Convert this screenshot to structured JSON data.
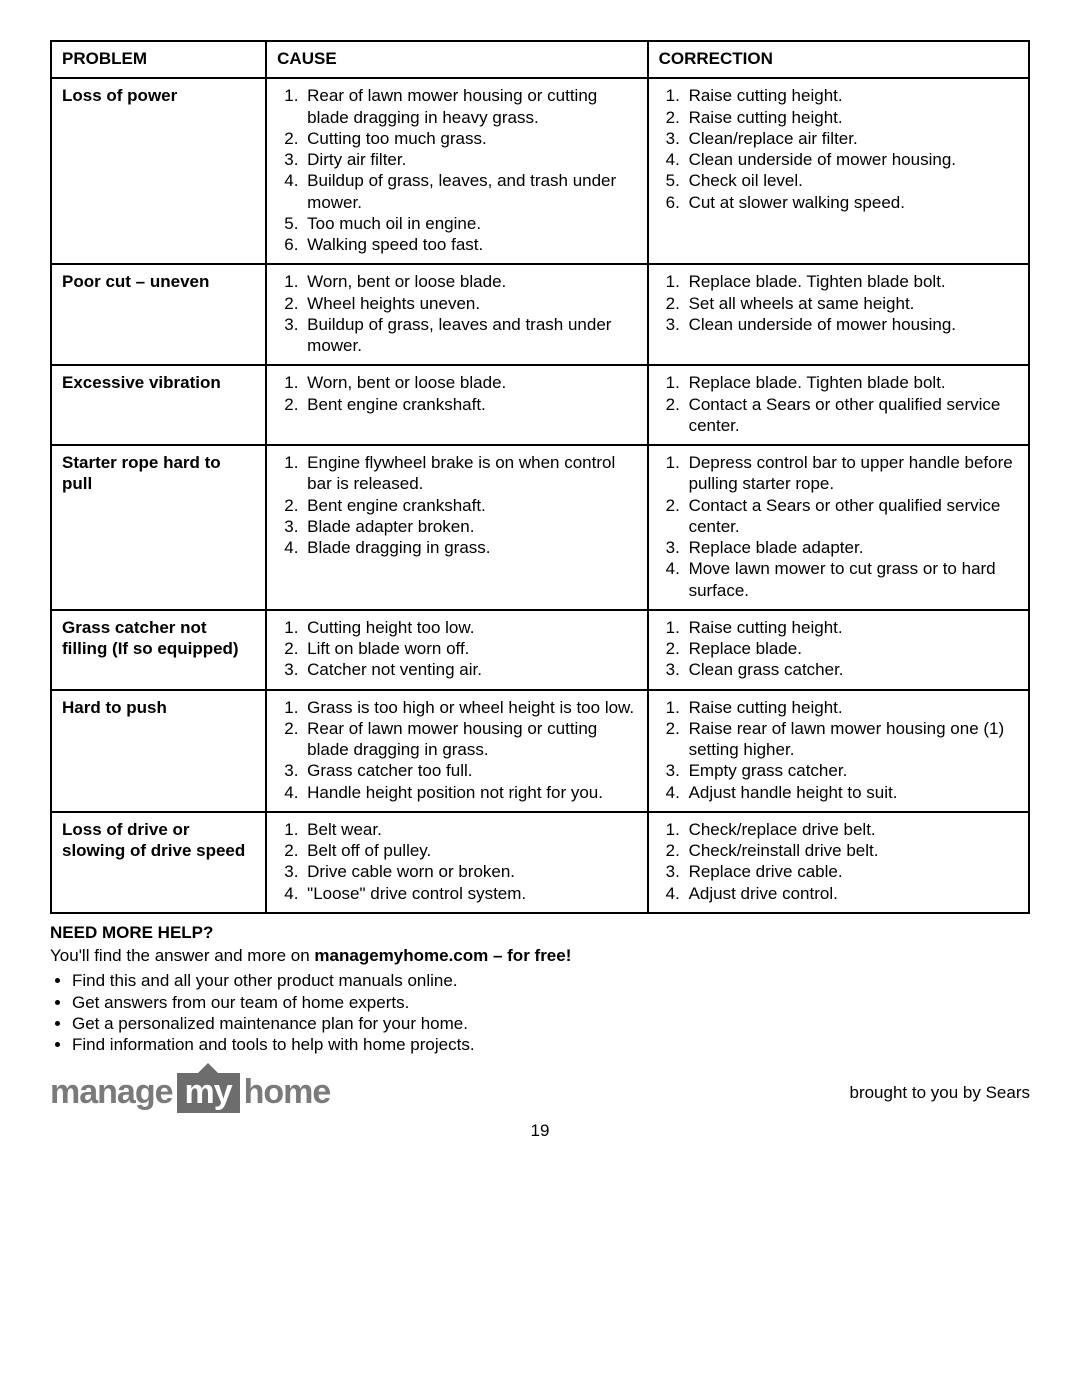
{
  "table": {
    "headers": {
      "problem": "PROBLEM",
      "cause": "CAUSE",
      "correction": "CORRECTION"
    },
    "rows": [
      {
        "problem": "Loss of power",
        "causes": [
          "Rear of lawn mower housing or cutting blade dragging in heavy grass.",
          "Cutting too much grass.",
          "Dirty air filter.",
          "Buildup of grass, leaves, and trash under mower.",
          "Too much oil in engine.",
          "Walking speed too fast."
        ],
        "corrections": [
          "Raise cutting height.",
          "Raise cutting height.",
          "Clean/replace air filter.",
          "Clean underside of mower housing.",
          "Check oil level.",
          "Cut at slower walking speed."
        ]
      },
      {
        "problem": "Poor cut – uneven",
        "causes": [
          "Worn, bent or loose blade.",
          "Wheel heights uneven.",
          "Buildup of grass, leaves and trash under mower."
        ],
        "corrections": [
          "Replace blade. Tighten blade bolt.",
          "Set all wheels at same height.",
          "Clean underside of mower housing."
        ]
      },
      {
        "problem": "Excessive vibration",
        "causes": [
          "Worn, bent or loose blade.",
          "Bent engine crankshaft."
        ],
        "corrections": [
          "Replace blade. Tighten blade bolt.",
          "Contact a Sears or other qualified service center."
        ]
      },
      {
        "problem": "Starter rope hard to pull",
        "causes": [
          "Engine flywheel brake is on when control bar is released.",
          "Bent engine crankshaft.",
          "Blade adapter broken.",
          "Blade dragging in grass."
        ],
        "corrections": [
          "Depress control bar to upper handle before pulling starter rope.",
          "Contact a Sears or other qualified service center.",
          "Replace blade adapter.",
          "Move lawn mower to cut grass or to hard surface."
        ]
      },
      {
        "problem": "Grass catcher not filling (If so equipped)",
        "causes": [
          "Cutting height too low.",
          "Lift on blade worn off.",
          "Catcher not venting air."
        ],
        "corrections": [
          "Raise cutting height.",
          "Replace blade.",
          "Clean grass catcher."
        ]
      },
      {
        "problem": "Hard to push",
        "causes": [
          "Grass is too high or wheel height is too low.",
          "Rear of lawn mower housing or cutting blade dragging in grass.",
          "Grass catcher too full.",
          "Handle height position not right for you."
        ],
        "corrections": [
          "Raise cutting height.",
          "Raise rear of lawn mower housing one (1) setting higher.",
          "Empty grass catcher.",
          "Adjust handle height to suit."
        ]
      },
      {
        "problem": "Loss of drive or slowing of drive speed",
        "causes": [
          "Belt wear.",
          "Belt off of pulley.",
          "Drive cable worn or broken.",
          "\"Loose\" drive control system."
        ],
        "corrections": [
          "Check/replace drive belt.",
          "Check/reinstall drive belt.",
          "Replace drive cable.",
          "Adjust drive control."
        ]
      }
    ]
  },
  "help": {
    "heading": "NEED MORE HELP?",
    "intro_prefix": "You'll find the answer and more on ",
    "intro_bold": "managemyhome.com – for free!",
    "bullets": [
      "Find this and all your other product manuals online.",
      "Get answers from our team of home experts.",
      "Get a personalized maintenance plan for your home.",
      "Find information and tools to help with home projects."
    ]
  },
  "logo": {
    "word1": "manage",
    "word2": "my",
    "word3": "home"
  },
  "footer": {
    "brought": "brought to you by Sears",
    "page": "19"
  }
}
